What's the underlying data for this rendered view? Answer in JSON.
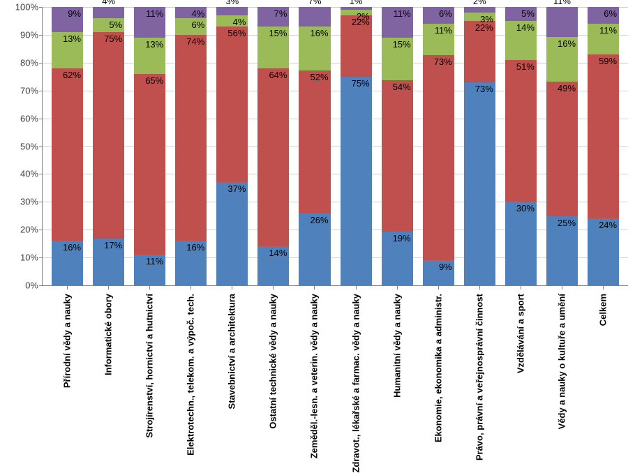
{
  "chart": {
    "type": "stacked-bar-100",
    "y": {
      "min": 0,
      "max": 100,
      "step": 10,
      "suffix": "%"
    },
    "colors": {
      "grid": "#d0d0d0",
      "axis": "#808080",
      "background": "#ffffff",
      "label_text": "#000000"
    },
    "series_colors": [
      "#4f81bd",
      "#c0504d",
      "#9bbb59",
      "#8064a2"
    ],
    "bar_width": 0.7,
    "label_fontsize": 13,
    "xlabel_fontsize": 13,
    "xlabel_fontweight": "bold",
    "categories": [
      {
        "label": "Přírodní vědy a nauky",
        "values": [
          16,
          62,
          13,
          9
        ],
        "top_label_outside": false
      },
      {
        "label": "Informatické obory",
        "values": [
          17,
          75,
          5,
          4
        ],
        "top_label_outside": true
      },
      {
        "label": "Strojírenství, hornictví a hutnictví",
        "values": [
          11,
          65,
          13,
          11
        ],
        "top_label_outside": false
      },
      {
        "label": "Elektrotechn., telekom. a výpoč. tech.",
        "values": [
          16,
          74,
          6,
          4
        ],
        "top_label_outside": false
      },
      {
        "label": "Stavebnictví a architektura",
        "values": [
          37,
          56,
          4,
          3
        ],
        "top_label_outside": true
      },
      {
        "label": "Ostatní technické vědy a nauky",
        "values": [
          14,
          64,
          15,
          7
        ],
        "top_label_outside": false
      },
      {
        "label": "Zeměděl.-lesn. a veterin. vědy a nauky",
        "values": [
          26,
          52,
          16,
          7
        ],
        "top_label_outside": true
      },
      {
        "label": "Zdravot., lékařské a farmac. vědy a nauky",
        "values": [
          75,
          22,
          2,
          1
        ],
        "top_label_outside": true
      },
      {
        "label": "Humanitní vědy a nauky",
        "values": [
          19,
          54,
          15,
          11
        ],
        "top_label_outside": false
      },
      {
        "label": "Ekonomie, ekonomika a administr.",
        "values": [
          9,
          73,
          11,
          6
        ],
        "top_label_outside": false
      },
      {
        "label": "Právo, právní a veřejnosprávní činnost",
        "values": [
          73,
          22,
          3,
          2
        ],
        "top_label_outside": true
      },
      {
        "label": "Vzdělávání a sport",
        "values": [
          30,
          51,
          14,
          5
        ],
        "top_label_outside": false
      },
      {
        "label": "Vědy a nauky o kultuře a umění",
        "values": [
          25,
          49,
          16,
          11
        ],
        "top_label_outside": true
      },
      {
        "label": "Celkem",
        "values": [
          24,
          59,
          11,
          6
        ],
        "top_label_outside": false
      }
    ]
  }
}
